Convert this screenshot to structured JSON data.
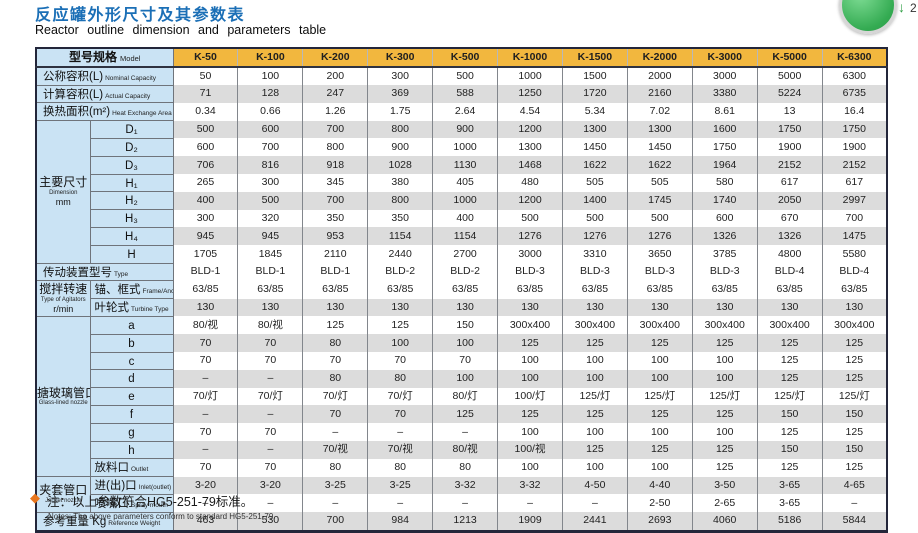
{
  "header": {
    "title_zh": "反应罐外形尺寸及其参数表",
    "title_en": "Reactor outline dimension and parameters table"
  },
  "overlay_widget": {
    "arrow_glyph": "↓",
    "badge": "2"
  },
  "note": {
    "bullet": "◆",
    "zh": "注：以上参数符合HG5-251-79标准。",
    "en": "Notes: The above parameters conform to standard HG5-251-79."
  },
  "colors": {
    "title_blue": "#1B6FB6",
    "header_orange": "#F2B73E",
    "label_blue": "#CAE3F4",
    "stripe_gray": "#DCDCDC",
    "note_orange": "#E8761E",
    "widget_green": "#34AB52"
  },
  "chart_data": {
    "type": "table",
    "title": "反应罐外形尺寸及其参数表 / Reactor outline dimension and parameters table",
    "model_header": {
      "zh": "型号规格",
      "en": "Model"
    },
    "models": [
      "K-50",
      "K-100",
      "K-200",
      "K-300",
      "K-500",
      "K-1000",
      "K-1500",
      "K-2000",
      "K-3000",
      "K-5000",
      "K-6300"
    ],
    "rows": [
      {
        "id": "nominal-capacity",
        "span": 2,
        "label_zh": "公称容积(L)",
        "label_en": "Nominal Capacity",
        "shade": false,
        "values": [
          "50",
          "100",
          "200",
          "300",
          "500",
          "1000",
          "1500",
          "2000",
          "3000",
          "5000",
          "6300"
        ]
      },
      {
        "id": "actual-capacity",
        "span": 2,
        "label_zh": "计算容积(L)",
        "label_en": "Actual Capacity",
        "shade": true,
        "values": [
          "71",
          "128",
          "247",
          "369",
          "588",
          "1250",
          "1720",
          "2160",
          "3380",
          "5224",
          "6735"
        ]
      },
      {
        "id": "heat-exchange-area",
        "span": 2,
        "label_zh": "换热面积(m²)",
        "label_en": "Heat Exchange Area",
        "shade": false,
        "values": [
          "0.34",
          "0.66",
          "1.26",
          "1.75",
          "2.64",
          "4.54",
          "5.34",
          "7.02",
          "8.61",
          "13",
          "16.4"
        ]
      },
      {
        "id": "d1",
        "group": {
          "zh": "主要尺寸",
          "en": "Dimension",
          "unit": "mm",
          "span": 8
        },
        "label_zh": "D₁",
        "shade": true,
        "values": [
          "500",
          "600",
          "700",
          "800",
          "900",
          "1200",
          "1300",
          "1300",
          "1600",
          "1750",
          "1750"
        ]
      },
      {
        "id": "d2",
        "label_zh": "D₂",
        "shade": false,
        "values": [
          "600",
          "700",
          "800",
          "900",
          "1000",
          "1300",
          "1450",
          "1450",
          "1750",
          "1900",
          "1900"
        ]
      },
      {
        "id": "d3",
        "label_zh": "D₃",
        "shade": true,
        "values": [
          "706",
          "816",
          "918",
          "1028",
          "1130",
          "1468",
          "1622",
          "1622",
          "1964",
          "2152",
          "2152"
        ]
      },
      {
        "id": "h1",
        "label_zh": "H₁",
        "shade": false,
        "values": [
          "265",
          "300",
          "345",
          "380",
          "405",
          "480",
          "505",
          "505",
          "580",
          "617",
          "617"
        ]
      },
      {
        "id": "h2",
        "label_zh": "H₂",
        "shade": true,
        "values": [
          "400",
          "500",
          "700",
          "800",
          "1000",
          "1200",
          "1400",
          "1745",
          "1740",
          "2050",
          "2997"
        ]
      },
      {
        "id": "h3",
        "label_zh": "H₃",
        "shade": false,
        "values": [
          "300",
          "320",
          "350",
          "350",
          "400",
          "500",
          "500",
          "500",
          "600",
          "670",
          "700"
        ]
      },
      {
        "id": "h4",
        "label_zh": "H₄",
        "shade": true,
        "values": [
          "945",
          "945",
          "953",
          "1154",
          "1154",
          "1276",
          "1276",
          "1276",
          "1326",
          "1326",
          "1475"
        ]
      },
      {
        "id": "h",
        "label_zh": "H",
        "shade": false,
        "values": [
          "1705",
          "1845",
          "2110",
          "2440",
          "2700",
          "3000",
          "3310",
          "3650",
          "3785",
          "4800",
          "5580"
        ]
      },
      {
        "id": "drive-type",
        "span": 2,
        "label_zh": "传动装置型号",
        "label_en": "Type",
        "shade": false,
        "values": [
          "BLD-1",
          "BLD-1",
          "BLD-1",
          "BLD-2",
          "BLD-2",
          "BLD-3",
          "BLD-3",
          "BLD-3",
          "BLD-3",
          "BLD-4",
          "BLD-4"
        ]
      },
      {
        "id": "frame-anchor-speed",
        "group": {
          "zh": "搅拌转速",
          "en": "Type of Agitators",
          "unit": "r/min",
          "span": 2
        },
        "label_zh": "锚、框式",
        "label_en": "Frame/Anchor Type",
        "shade": false,
        "values": [
          "63/85",
          "63/85",
          "63/85",
          "63/85",
          "63/85",
          "63/85",
          "63/85",
          "63/85",
          "63/85",
          "63/85",
          "63/85"
        ]
      },
      {
        "id": "turbine-speed",
        "label_zh": "叶轮式",
        "label_en": "Turbine Type",
        "shade": true,
        "values": [
          "130",
          "130",
          "130",
          "130",
          "130",
          "130",
          "130",
          "130",
          "130",
          "130",
          "130"
        ]
      },
      {
        "id": "nozzle-a",
        "group": {
          "zh": "搪玻璃管口",
          "en": "Glass-lined nozzle",
          "unit": "",
          "span": 9
        },
        "label_zh": "a",
        "shade": false,
        "values": [
          "80/视",
          "80/视",
          "125",
          "125",
          "150",
          "300x400",
          "300x400",
          "300x400",
          "300x400",
          "300x400",
          "300x400"
        ]
      },
      {
        "id": "nozzle-b",
        "label_zh": "b",
        "shade": true,
        "values": [
          "70",
          "70",
          "80",
          "100",
          "100",
          "125",
          "125",
          "125",
          "125",
          "125",
          "125"
        ]
      },
      {
        "id": "nozzle-c",
        "label_zh": "c",
        "shade": false,
        "values": [
          "70",
          "70",
          "70",
          "70",
          "70",
          "100",
          "100",
          "100",
          "100",
          "125",
          "125"
        ]
      },
      {
        "id": "nozzle-d",
        "label_zh": "d",
        "shade": true,
        "values": [
          "–",
          "–",
          "80",
          "80",
          "100",
          "100",
          "100",
          "100",
          "100",
          "125",
          "125"
        ]
      },
      {
        "id": "nozzle-e",
        "label_zh": "e",
        "shade": false,
        "values": [
          "70/灯",
          "70/灯",
          "70/灯",
          "70/灯",
          "80/灯",
          "100/灯",
          "125/灯",
          "125/灯",
          "125/灯",
          "125/灯",
          "125/灯"
        ]
      },
      {
        "id": "nozzle-f",
        "label_zh": "f",
        "shade": true,
        "values": [
          "–",
          "–",
          "70",
          "70",
          "125",
          "125",
          "125",
          "125",
          "125",
          "150",
          "150"
        ]
      },
      {
        "id": "nozzle-g",
        "label_zh": "g",
        "shade": false,
        "values": [
          "70",
          "70",
          "–",
          "–",
          "–",
          "100",
          "100",
          "100",
          "100",
          "125",
          "125"
        ]
      },
      {
        "id": "nozzle-h",
        "label_zh": "h",
        "shade": true,
        "values": [
          "–",
          "–",
          "70/视",
          "70/视",
          "80/视",
          "100/视",
          "125",
          "125",
          "125",
          "150",
          "150"
        ]
      },
      {
        "id": "outlet",
        "label_zh": "放料口",
        "label_en": "Outlet",
        "shade": false,
        "values": [
          "70",
          "70",
          "80",
          "80",
          "80",
          "100",
          "100",
          "100",
          "125",
          "125",
          "125"
        ]
      },
      {
        "id": "jacket-inlet-outlet",
        "group": {
          "zh": "夹套管口",
          "en": "Jacket nozzle",
          "unit": "",
          "span": 2
        },
        "label_zh": "进(出)口",
        "label_en": "Inlet(outlet)",
        "shade": true,
        "values": [
          "3-20",
          "3-20",
          "3-25",
          "3-25",
          "3-32",
          "3-32",
          "4-50",
          "4-40",
          "3-50",
          "3-65",
          "4-65"
        ]
      },
      {
        "id": "spray-mouth",
        "label_zh": "喷嘴口",
        "label_en": "Spray mouth",
        "shade": false,
        "values": [
          "–",
          "–",
          "–",
          "–",
          "–",
          "–",
          "–",
          "2-50",
          "2-65",
          "3-65",
          "–"
        ]
      },
      {
        "id": "reference-weight",
        "span": 2,
        "label_zh": "参考重量 Kg",
        "label_en": "Reference Weight",
        "shade": true,
        "values": [
          "463",
          "530",
          "700",
          "984",
          "1213",
          "1909",
          "2441",
          "2693",
          "4060",
          "5186",
          "5844"
        ]
      }
    ]
  }
}
